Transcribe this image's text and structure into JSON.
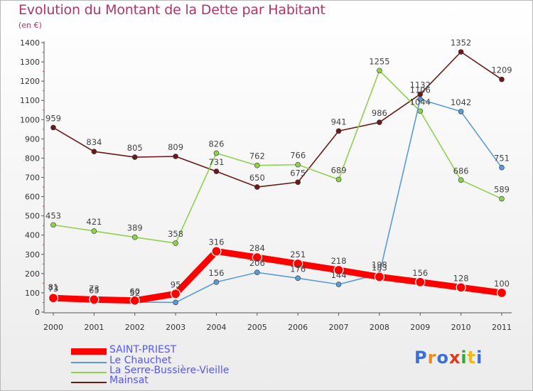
{
  "title": "Evolution du Montant de la Dette par Habitant",
  "subtitle": "(en €)",
  "brand": "Proxiti",
  "colors": {
    "title": "#b0346a",
    "legend_text": "#5656ff",
    "axis": "#555555"
  },
  "chart_data": {
    "type": "line",
    "x": [
      "2000",
      "2001",
      "2002",
      "2003",
      "2004",
      "2005",
      "2006",
      "2007",
      "2008",
      "2009",
      "2010",
      "2011"
    ],
    "ylim": [
      0,
      1400
    ],
    "yticks": [
      0,
      100,
      200,
      300,
      400,
      500,
      600,
      700,
      800,
      900,
      1000,
      1100,
      1200,
      1300,
      1400
    ],
    "grid": false,
    "legend_position": "bottom-left",
    "series": [
      {
        "name": "SAINT-PRIEST",
        "color": "#ff0000",
        "values": [
          73,
          65,
          60,
          95,
          316,
          284,
          251,
          218,
          183,
          156,
          128,
          100
        ],
        "labels": [
          "73",
          "65",
          "60",
          "95",
          "316",
          "284",
          "251",
          "218",
          "183",
          "156",
          "128",
          "100"
        ]
      },
      {
        "name": "Le Chauchet",
        "color": "#5b9bd5",
        "values": [
          81,
          73,
          52,
          50,
          156,
          206,
          176,
          144,
          198,
          1106,
          1042,
          751
        ],
        "labels": [
          "81",
          "73",
          "52",
          "",
          "156",
          "206",
          "176",
          "144",
          "198",
          "1106",
          "1042",
          "751"
        ]
      },
      {
        "name": "La Serre-Bussière-Vieille",
        "color": "#8fd14f",
        "values": [
          453,
          421,
          389,
          358,
          826,
          762,
          766,
          689,
          1255,
          1044,
          686,
          589
        ],
        "labels": [
          "453",
          "421",
          "389",
          "358",
          "826",
          "762",
          "766",
          "689",
          "1255",
          "1044",
          "686",
          "589"
        ]
      },
      {
        "name": "Mainsat",
        "color": "#6b1a1a",
        "values": [
          959,
          834,
          805,
          809,
          731,
          650,
          675,
          941,
          986,
          1132,
          1352,
          1209
        ],
        "labels": [
          "959",
          "834",
          "805",
          "809",
          "731",
          "650",
          "675",
          "941",
          "986",
          "1132",
          "1352",
          "1209"
        ]
      }
    ]
  }
}
